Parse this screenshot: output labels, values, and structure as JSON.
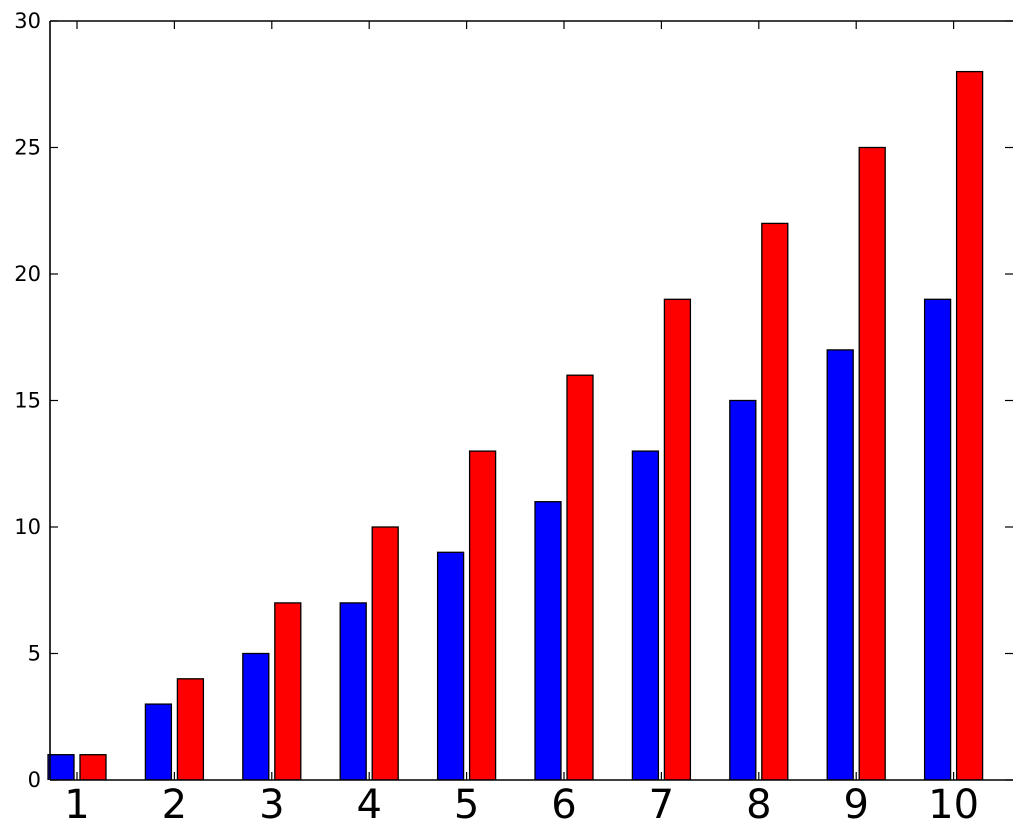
{
  "chart_data": {
    "type": "bar",
    "categories": [
      "1",
      "2",
      "3",
      "4",
      "5",
      "6",
      "7",
      "8",
      "9",
      "10"
    ],
    "series": [
      {
        "values": [
          1,
          3,
          5,
          7,
          9,
          11,
          13,
          15,
          17,
          19
        ],
        "color": "#0000ff"
      },
      {
        "values": [
          1,
          4,
          7,
          10,
          13,
          16,
          19,
          22,
          25,
          28
        ],
        "color": "#ff0000"
      }
    ],
    "title": "",
    "xlabel": "",
    "ylabel": "",
    "ylim": [
      0,
      30
    ],
    "yticks": [
      "0",
      "5",
      "10",
      "15",
      "20",
      "25",
      "30"
    ],
    "grid": false,
    "legend": "none"
  }
}
